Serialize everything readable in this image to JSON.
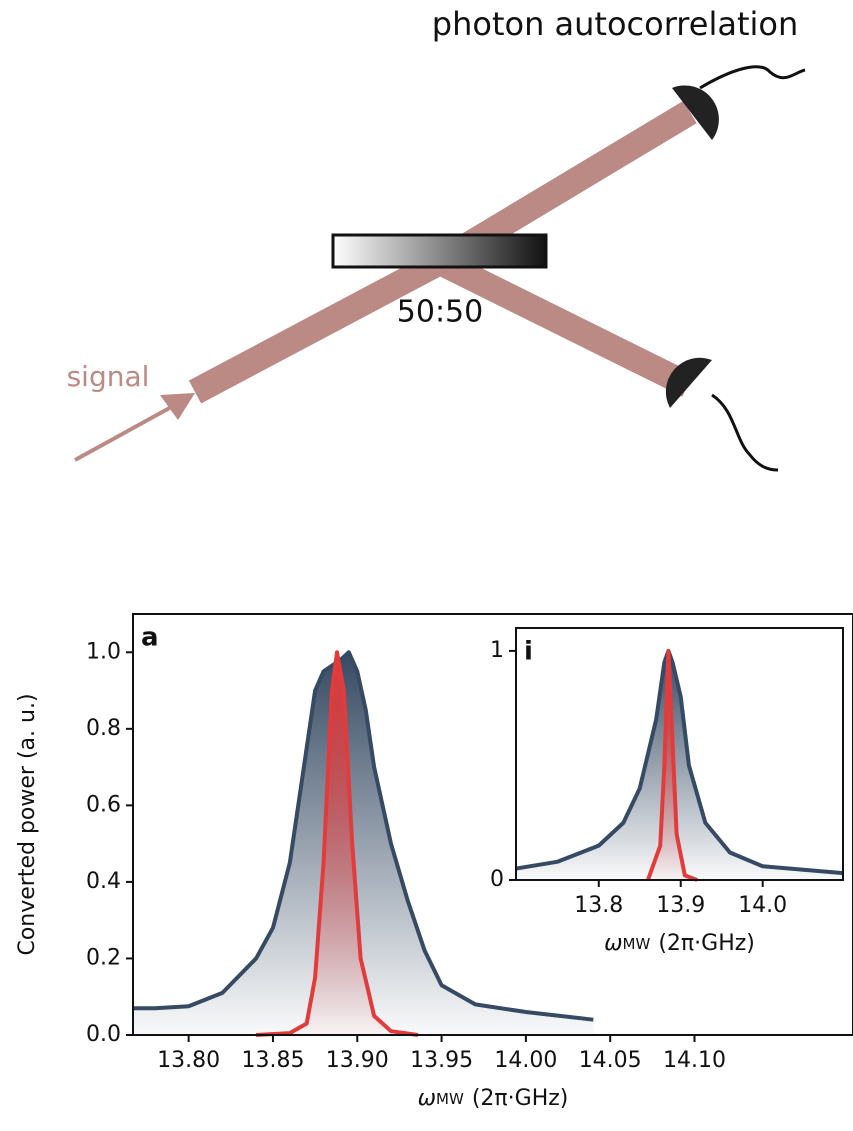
{
  "diagram": {
    "title": "photon autocorrelation",
    "splitter": "50:50",
    "input": "signal"
  },
  "chart_data": [
    {
      "type": "line",
      "panel": "a",
      "ylabel": "Converted power (a. u.)",
      "xlabel": {
        "symbol": "ω",
        "subscript": "MW",
        "unit": "(2π·GHz)"
      },
      "xlim": [
        13.767,
        14.194
      ],
      "ylim": [
        0,
        1.1
      ],
      "xticks": [
        {
          "value": 13.8,
          "label": "13.80"
        },
        {
          "value": 13.85,
          "label": "13.85"
        },
        {
          "value": 13.9,
          "label": "13.90"
        },
        {
          "value": 13.95,
          "label": "13.95"
        },
        {
          "value": 14.0,
          "label": "14.00"
        },
        {
          "value": 14.05,
          "label": "14.05"
        },
        {
          "value": 14.1,
          "label": "14.10"
        }
      ],
      "yticks": [
        {
          "value": 0,
          "label": "0.0"
        },
        0.2,
        0.4,
        0.6,
        0.8,
        {
          "value": 1,
          "label": "1.0"
        }
      ],
      "series": [
        {
          "color": "#364a63",
          "x": [
            13.767,
            13.78,
            13.8,
            13.82,
            13.84,
            13.85,
            13.86,
            13.87,
            13.875,
            13.88,
            13.89,
            13.895,
            13.9,
            13.905,
            13.91,
            13.92,
            13.93,
            13.94,
            13.95,
            13.97,
            14.0,
            14.04
          ],
          "values": [
            0.07,
            0.07,
            0.075,
            0.11,
            0.2,
            0.28,
            0.45,
            0.75,
            0.9,
            0.95,
            0.98,
            1.0,
            0.95,
            0.85,
            0.7,
            0.5,
            0.35,
            0.22,
            0.13,
            0.08,
            0.06,
            0.04
          ]
        },
        {
          "color": "#e23b3b",
          "x": [
            13.84,
            13.86,
            13.87,
            13.875,
            13.88,
            13.885,
            13.888,
            13.892,
            13.897,
            13.902,
            13.91,
            13.92,
            13.936
          ],
          "values": [
            0,
            0.005,
            0.03,
            0.15,
            0.45,
            0.9,
            1.0,
            0.9,
            0.5,
            0.2,
            0.05,
            0.01,
            0
          ]
        }
      ]
    },
    {
      "type": "line",
      "panel": "i",
      "xlabel": {
        "symbol": "ω",
        "subscript": "MW",
        "unit": "(2π·GHz)"
      },
      "xlim": [
        13.699,
        14.098
      ],
      "ylim": [
        0,
        1.1
      ],
      "xticks": [
        13.8,
        13.9,
        {
          "value": 14.0,
          "label": "14.0"
        }
      ],
      "yticks": [
        0,
        1
      ],
      "series": [
        {
          "color": "#364a63",
          "x": [
            13.699,
            13.75,
            13.8,
            13.83,
            13.85,
            13.87,
            13.88,
            13.885,
            13.89,
            13.9,
            13.91,
            13.93,
            13.96,
            14.0,
            14.098
          ],
          "values": [
            0.05,
            0.08,
            0.15,
            0.25,
            0.4,
            0.7,
            0.95,
            1.0,
            0.95,
            0.8,
            0.5,
            0.25,
            0.12,
            0.06,
            0.03
          ]
        },
        {
          "color": "#e23b3b",
          "x": [
            13.86,
            13.875,
            13.88,
            13.885,
            13.89,
            13.895,
            13.905,
            13.92
          ],
          "values": [
            0,
            0.15,
            0.5,
            1.0,
            0.6,
            0.2,
            0.02,
            0
          ]
        }
      ]
    }
  ]
}
